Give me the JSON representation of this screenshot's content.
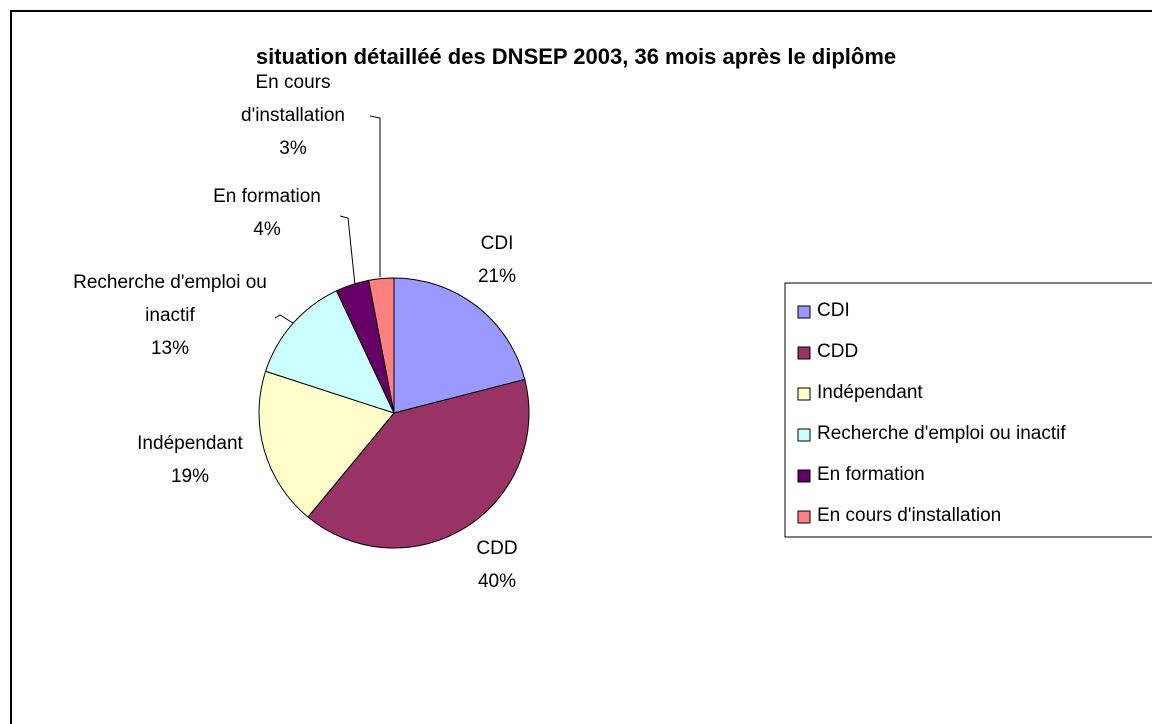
{
  "chart_data": {
    "type": "pie",
    "title": "situation détailléé des DNSEP 2003, 36 mois après le diplôme",
    "categories": [
      "CDI",
      "CDD",
      "Indépendant",
      "Recherche d'emploi ou inactif",
      "En formation",
      "En cours d'installation"
    ],
    "values": [
      21,
      40,
      19,
      13,
      4,
      3
    ],
    "value_labels": [
      "21%",
      "40%",
      "19%",
      "13%",
      "4%",
      "3%"
    ],
    "colors": [
      "#9999ff",
      "#993366",
      "#ffffcc",
      "#ccffff",
      "#660066",
      "#ff8080"
    ],
    "legend": "right"
  }
}
